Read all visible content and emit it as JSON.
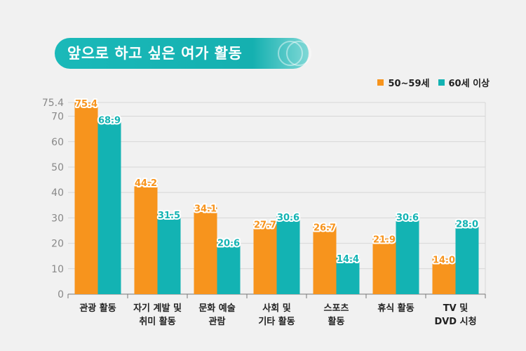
{
  "title": "앞으로 하고 싶은 여가 활동",
  "colors": {
    "series_50s": "#f7941d",
    "series_60s": "#13b3b3",
    "title_bg": "#16b2b2"
  },
  "chart_data": {
    "type": "bar",
    "title": "앞으로 하고 싶은 여가 활동",
    "categories": [
      [
        "관광 활동"
      ],
      [
        "자기 계발 및",
        "취미 활동"
      ],
      [
        "문화 예술",
        "관람"
      ],
      [
        "사회 및",
        "기타 활동"
      ],
      [
        "스포츠",
        "활동"
      ],
      [
        "휴식 활동"
      ],
      [
        "TV 및",
        "DVD 시청"
      ]
    ],
    "series": [
      {
        "name": "50~59세",
        "color": "#f7941d",
        "values": [
          75.4,
          44.2,
          34.1,
          27.7,
          26.7,
          21.9,
          14.0
        ]
      },
      {
        "name": "60세 이상",
        "color": "#13b3b3",
        "values": [
          68.9,
          31.5,
          20.6,
          30.6,
          14.4,
          30.6,
          28.0
        ]
      }
    ],
    "ylim": [
      0,
      75.4
    ],
    "yticks": [
      0,
      10,
      20,
      30,
      40,
      50,
      60,
      70,
      75.4
    ],
    "grid": true,
    "legend": "top-right"
  }
}
